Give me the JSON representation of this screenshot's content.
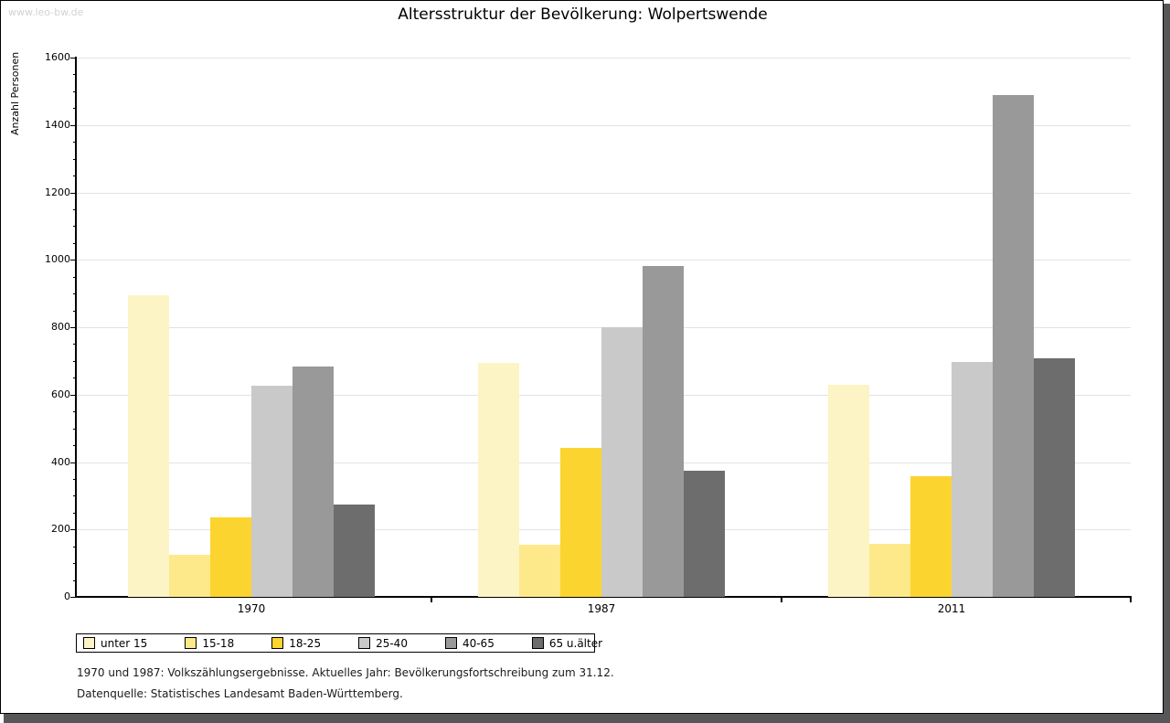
{
  "watermark": "www.leo-bw.de",
  "title": "Altersstruktur der Bevölkerung: Wolpertswende",
  "chart_data": {
    "type": "bar",
    "title": "Altersstruktur der Bevölkerung: Wolpertswende",
    "xlabel": "",
    "ylabel": "Anzahl Personen",
    "ylim": [
      0,
      1600
    ],
    "ytick_interval": 200,
    "minor_tick_interval": 50,
    "grid": true,
    "legend_position": "bottom",
    "categories": [
      "1970",
      "1987",
      "2011"
    ],
    "series": [
      {
        "name": "unter 15",
        "color": "#fcf4c5",
        "values": [
          895,
          695,
          630
        ]
      },
      {
        "name": "15-18",
        "color": "#fde98a",
        "values": [
          125,
          155,
          158
        ]
      },
      {
        "name": "18-25",
        "color": "#fcd430",
        "values": [
          235,
          443,
          357
        ]
      },
      {
        "name": "25-40",
        "color": "#c9c9c9",
        "values": [
          627,
          800,
          697
        ]
      },
      {
        "name": "40-65",
        "color": "#999999",
        "values": [
          683,
          982,
          1488
        ]
      },
      {
        "name": "65 u.älter",
        "color": "#6d6d6d",
        "values": [
          273,
          374,
          707
        ]
      }
    ]
  },
  "footnotes": [
    "1970 und 1987: Volkszählungsergebnisse. Aktuelles Jahr: Bevölkerungsfortschreibung zum 31.12.",
    "Datenquelle: Statistisches Landesamt Baden-Württemberg."
  ],
  "colors": {
    "frame_shadow": "#57575a",
    "gridline": "#e3e3e3",
    "axis": "#000000",
    "watermark": "#d2d2d2"
  }
}
